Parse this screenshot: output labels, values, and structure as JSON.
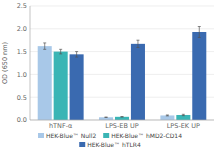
{
  "chart_data": {
    "type": "bar",
    "categories": [
      "hTNF-α",
      "LPS-EB UP",
      "LPS-EK UP"
    ],
    "series": [
      {
        "name": "HEK-Blue™ Null2",
        "color": "#a8c8e8",
        "values": [
          1.62,
          0.06,
          0.1
        ],
        "errors": [
          0.07,
          0.005,
          0.01
        ]
      },
      {
        "name": "HEK-Blue™ hMD2-CD14",
        "color": "#3ab5b5",
        "values": [
          1.5,
          0.07,
          0.11
        ],
        "errors": [
          0.05,
          0.005,
          0.015
        ]
      },
      {
        "name": "HEK-Blue™ hTLR4",
        "color": "#3a6ab0",
        "values": [
          1.44,
          1.67,
          1.93
        ],
        "errors": [
          0.06,
          0.08,
          0.12
        ]
      }
    ],
    "ylabel": "OD (650 nm)",
    "ylim": [
      0.0,
      2.5
    ],
    "yticks": [
      {
        "value": 0.0,
        "label": "0.0"
      },
      0.5,
      {
        "value": 1.0,
        "label": "1.0"
      },
      1.5,
      {
        "value": 2.0,
        "label": "2.0"
      },
      2.5
    ],
    "grid": true,
    "legend": "bottom"
  }
}
